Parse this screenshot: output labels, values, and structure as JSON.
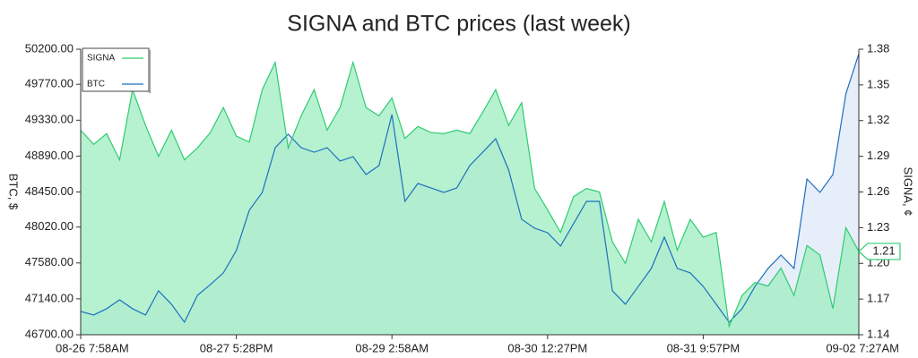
{
  "chart_data": {
    "type": "area",
    "title": "SIGNA and BTC prices (last week)",
    "ylabel": "BTC, $",
    "y2label": "SIGNA, ¢",
    "categories": [
      "08-26 7:58AM",
      null,
      null,
      null,
      null,
      null,
      null,
      null,
      null,
      null,
      null,
      null,
      "08-27 5:28PM",
      null,
      null,
      null,
      null,
      null,
      null,
      null,
      null,
      null,
      null,
      null,
      "08-29 2:58AM",
      null,
      null,
      null,
      null,
      null,
      null,
      null,
      null,
      null,
      null,
      null,
      "08-30 12:27PM",
      null,
      null,
      null,
      null,
      null,
      null,
      null,
      null,
      null,
      null,
      null,
      "08-31 9:57PM",
      null,
      null,
      null,
      null,
      null,
      null,
      null,
      null,
      null,
      null,
      null,
      "09-02 7:27AM"
    ],
    "series": [
      {
        "name": "SIGNA",
        "color": "#2ecc71",
        "fill": "#9eedc0",
        "axis": "y2",
        "values": [
          1.312,
          1.3,
          1.309,
          1.287,
          1.346,
          1.316,
          1.29,
          1.312,
          1.287,
          1.297,
          1.31,
          1.331,
          1.307,
          1.302,
          1.346,
          1.369,
          1.297,
          1.324,
          1.346,
          1.312,
          1.331,
          1.369,
          1.331,
          1.324,
          1.339,
          1.305,
          1.315,
          1.31,
          1.309,
          1.312,
          1.309,
          1.327,
          1.346,
          1.316,
          1.335,
          1.263,
          1.245,
          1.226,
          1.256,
          1.263,
          1.26,
          1.218,
          1.2,
          1.237,
          1.218,
          1.252,
          1.211,
          1.237,
          1.222,
          1.226,
          1.147,
          1.173,
          1.184,
          1.181,
          1.196,
          1.173,
          1.215,
          1.207,
          1.162,
          1.23,
          1.21
        ]
      },
      {
        "name": "BTC",
        "color": "#1f6fbf",
        "fill": "#e6eef9",
        "values": [
          46986,
          46942,
          47019,
          47128,
          47019,
          46942,
          47238,
          47074,
          46854,
          47183,
          47315,
          47458,
          47732,
          48226,
          48445,
          48993,
          49158,
          48993,
          48938,
          48993,
          48829,
          48883,
          48664,
          48774,
          49399,
          48335,
          48554,
          48500,
          48445,
          48500,
          48774,
          48938,
          49103,
          48719,
          48116,
          48006,
          47951,
          47787,
          48061,
          48335,
          48335,
          47238,
          47074,
          47293,
          47513,
          47896,
          47513,
          47458,
          47293,
          47074,
          46854,
          47019,
          47293,
          47513,
          47677,
          47513,
          48609,
          48445,
          48664,
          49652,
          50145
        ]
      }
    ],
    "ylim": [
      46700,
      50200
    ],
    "yticks": [
      {
        "value": 46700,
        "label": "46700.00"
      },
      {
        "value": 47140,
        "label": "47140.00"
      },
      {
        "value": 47580,
        "label": "47580.00"
      },
      {
        "value": 48020,
        "label": "48020.00"
      },
      {
        "value": 48450,
        "label": "48450.00"
      },
      {
        "value": 48890,
        "label": "48890.00"
      },
      {
        "value": 49330,
        "label": "49330.00"
      },
      {
        "value": 49770,
        "label": "49770.00"
      },
      {
        "value": 50200,
        "label": "50200.00"
      }
    ],
    "y2lim": [
      1.14,
      1.38
    ],
    "y2ticks": [
      1.14,
      1.17,
      {
        "value": 1.2,
        "label": "1.20"
      },
      1.23,
      1.26,
      1.29,
      1.32,
      1.35,
      1.38
    ],
    "legend": "top-left",
    "last_value_marker": true
  }
}
